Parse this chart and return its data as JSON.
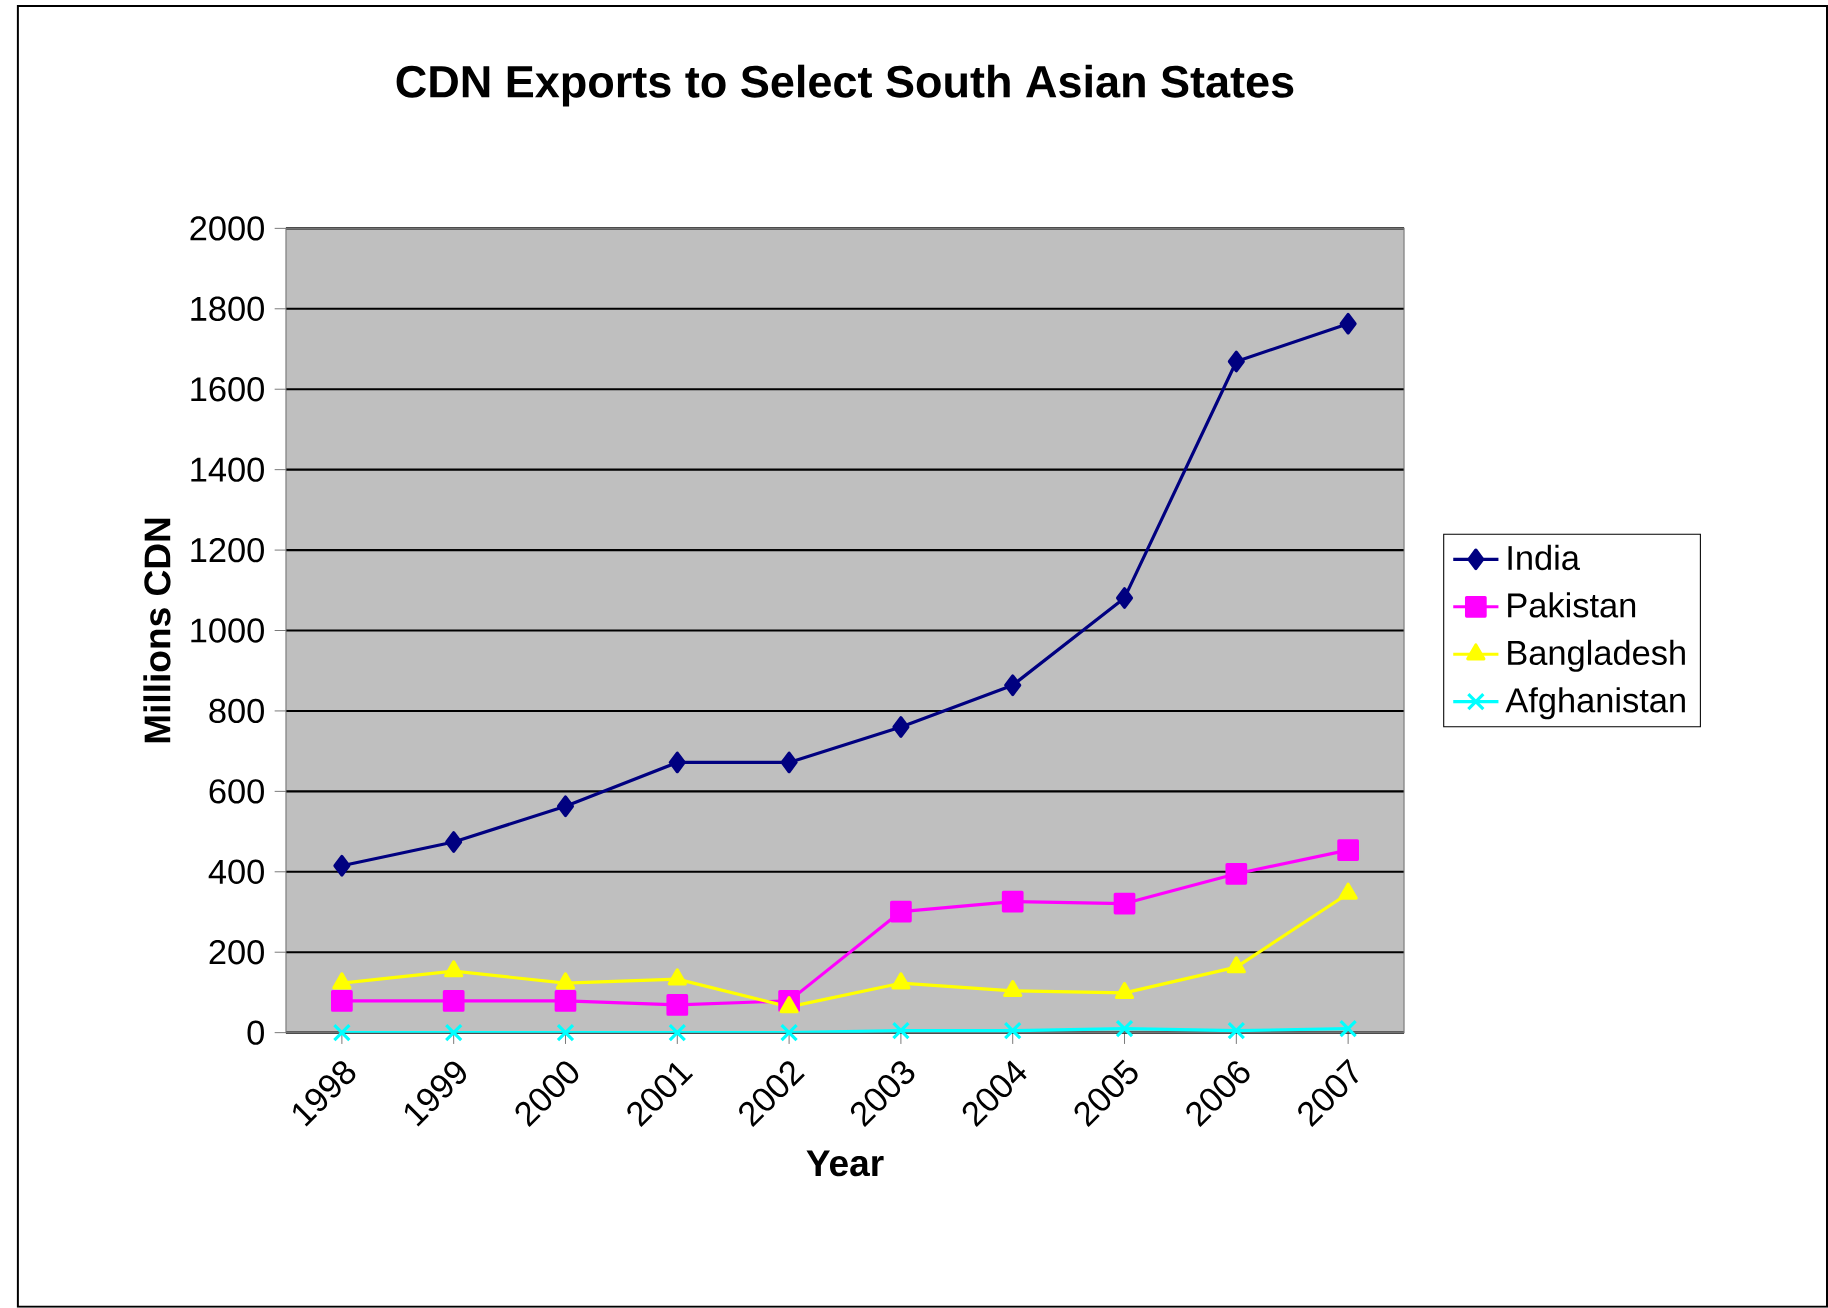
{
  "chart_data": {
    "type": "line",
    "title": "CDN Exports to Select South Asian States",
    "xlabel": "Year",
    "ylabel": "Millions CDN",
    "categories": [
      "1998",
      "1999",
      "2000",
      "2001",
      "2002",
      "2003",
      "2004",
      "2005",
      "2006",
      "2007"
    ],
    "series": [
      {
        "name": "India",
        "color": "#000080",
        "marker": "diamond",
        "values": [
          415,
          474,
          563,
          672,
          672,
          760,
          864,
          1081,
          1669,
          1763
        ]
      },
      {
        "name": "Pakistan",
        "color": "#ff00ff",
        "marker": "square",
        "values": [
          79,
          79,
          79,
          69,
          79,
          301,
          326,
          321,
          395,
          454
        ]
      },
      {
        "name": "Bangladesh",
        "color": "#ffff00",
        "marker": "triangle",
        "values": [
          123,
          153,
          123,
          133,
          64,
          123,
          104,
          99,
          163,
          346
        ]
      },
      {
        "name": "Afghanistan",
        "color": "#00ffff",
        "marker": "cross",
        "values": [
          0,
          0,
          0,
          0,
          0,
          5,
          5,
          10,
          5,
          10
        ]
      }
    ],
    "ylim": [
      0,
      2000
    ],
    "yticks": [
      0,
      200,
      400,
      600,
      800,
      1000,
      1200,
      1400,
      1600,
      1800,
      2000
    ],
    "grid": "y",
    "legend": "right"
  }
}
